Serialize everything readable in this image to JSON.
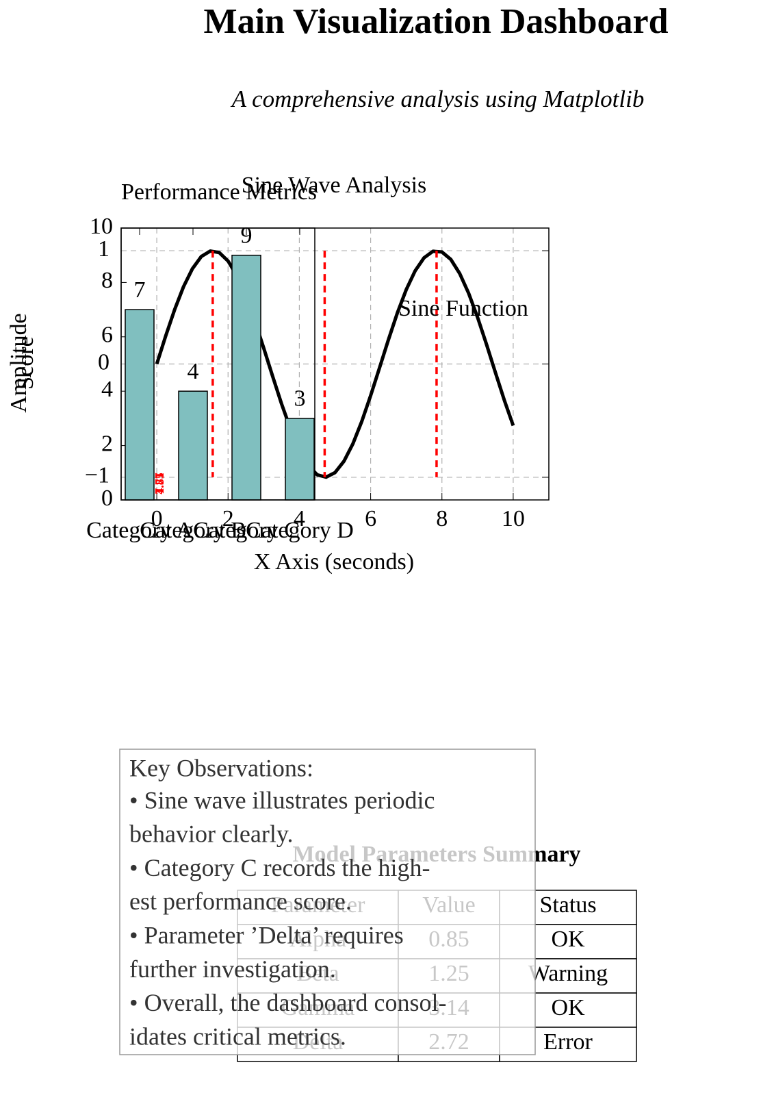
{
  "header": {
    "title": "Main Visualization Dashboard",
    "subtitle": "A comprehensive analysis using Matplotlib"
  },
  "chart_data": [
    {
      "type": "bar",
      "title": "Performance Metrics",
      "ylabel": "Score",
      "categories": [
        "Category A",
        "Category B",
        "Category C",
        "Category D"
      ],
      "values": [
        7,
        4,
        9,
        3
      ],
      "color": "#80bfbf",
      "ylim": [
        0,
        10
      ],
      "yticks": [
        0,
        2,
        4,
        6,
        8,
        10
      ]
    },
    {
      "type": "line",
      "title": "Sine Wave Analysis",
      "xlabel": "X Axis (seconds)",
      "ylabel": "Amplitude",
      "annotation": "Sine Function",
      "color": "#000000",
      "x": [
        0,
        0.25,
        0.5,
        0.75,
        1,
        1.25,
        1.5,
        1.75,
        2,
        2.25,
        2.5,
        2.75,
        3,
        3.25,
        3.5,
        3.75,
        4,
        4.25,
        4.5,
        4.75,
        5,
        5.25,
        5.5,
        5.75,
        6,
        6.25,
        6.5,
        6.75,
        7,
        7.25,
        7.5,
        7.75,
        8,
        8.25,
        8.5,
        8.75,
        9,
        9.25,
        9.5,
        9.75,
        10
      ],
      "values": [
        0,
        0.247,
        0.479,
        0.682,
        0.841,
        0.949,
        0.997,
        0.984,
        0.909,
        0.778,
        0.598,
        0.382,
        0.141,
        -0.108,
        -0.351,
        -0.572,
        -0.757,
        -0.895,
        -0.978,
        -0.999,
        -0.959,
        -0.859,
        -0.706,
        -0.508,
        -0.279,
        -0.033,
        0.215,
        0.451,
        0.657,
        0.823,
        0.938,
        0.995,
        0.989,
        0.923,
        0.798,
        0.624,
        0.412,
        0.174,
        -0.075,
        -0.319,
        -0.544
      ],
      "vlines": [
        1.57,
        4.71,
        7.85
      ],
      "vline_color": "#ff0000",
      "xlim": [
        -1,
        11
      ],
      "xticks": [
        0,
        2,
        4,
        6,
        8,
        10
      ],
      "ylim": [
        -1.2,
        1.2
      ],
      "yticks": [
        {
          "value": -1,
          "label": "−1"
        },
        0,
        1
      ],
      "grid": true
    }
  ],
  "table": {
    "title": "Model Parameters Summary",
    "header": [
      "Parameter",
      "Value",
      "Status"
    ],
    "rows": [
      [
        "Alpha",
        "0.85",
        "OK"
      ],
      [
        "Beta",
        "1.25",
        "Warning"
      ],
      [
        "Gamma",
        "3.14",
        "OK"
      ],
      [
        "Delta",
        "2.72",
        "Error"
      ]
    ]
  },
  "observations": {
    "heading": "Key Observations:",
    "lines": [
      "• Sine wave illustrates periodic",
      "behavior clearly.",
      "• Category C records the high-",
      "est performance score.",
      "• Parameter ’Delta’ requires",
      "further investigation.",
      "• Overall, the dashboard consol-",
      "idates critical metrics."
    ]
  }
}
